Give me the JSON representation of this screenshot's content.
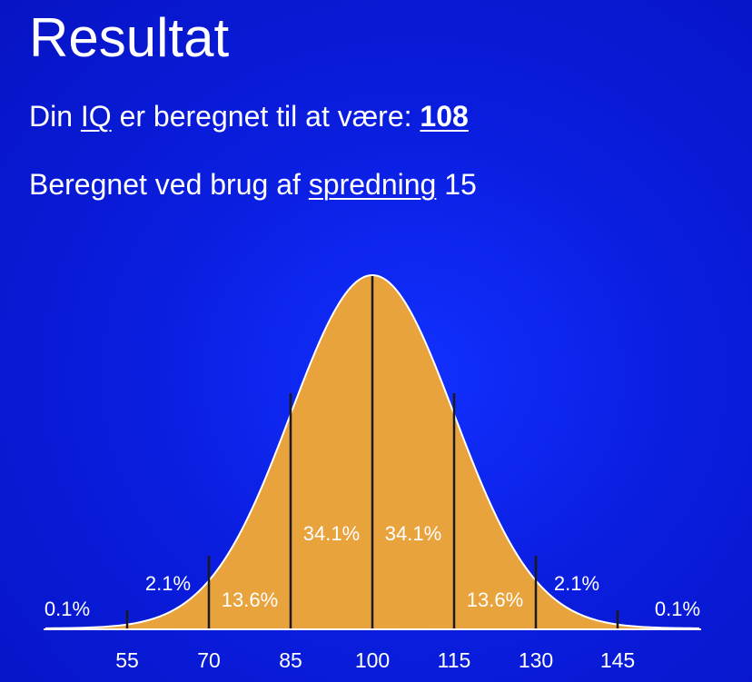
{
  "header": {
    "title": "Resultat"
  },
  "result": {
    "prefix": "Din ",
    "iq_link": "IQ",
    "middle": " er beregnet til at være: ",
    "value": "108"
  },
  "spread": {
    "prefix": "Beregnet ved brug af ",
    "link": "spredning",
    "value": " 15"
  },
  "colors": {
    "background": "#0a1ee0",
    "curve_fill": "#e8a33d",
    "divider": "#1a1a1a",
    "text": "#ffffff"
  },
  "chart_data": {
    "type": "area",
    "distribution": "normal",
    "mean": 100,
    "sd": 15,
    "xlim": [
      40,
      160
    ],
    "ticks": [
      "55",
      "70",
      "85",
      "100",
      "115",
      "130",
      "145"
    ],
    "tick_values": [
      55,
      70,
      85,
      100,
      115,
      130,
      145
    ],
    "dividers": [
      55,
      70,
      85,
      100,
      115,
      130,
      145
    ],
    "segment_labels": [
      {
        "label": "0.1%",
        "x": 44
      },
      {
        "label": "2.1%",
        "x": 62.5
      },
      {
        "label": "13.6%",
        "x": 77.5
      },
      {
        "label": "34.1%",
        "x": 92.5
      },
      {
        "label": "34.1%",
        "x": 107.5
      },
      {
        "label": "13.6%",
        "x": 122.5
      },
      {
        "label": "2.1%",
        "x": 137.5
      },
      {
        "label": "0.1%",
        "x": 156
      }
    ]
  }
}
